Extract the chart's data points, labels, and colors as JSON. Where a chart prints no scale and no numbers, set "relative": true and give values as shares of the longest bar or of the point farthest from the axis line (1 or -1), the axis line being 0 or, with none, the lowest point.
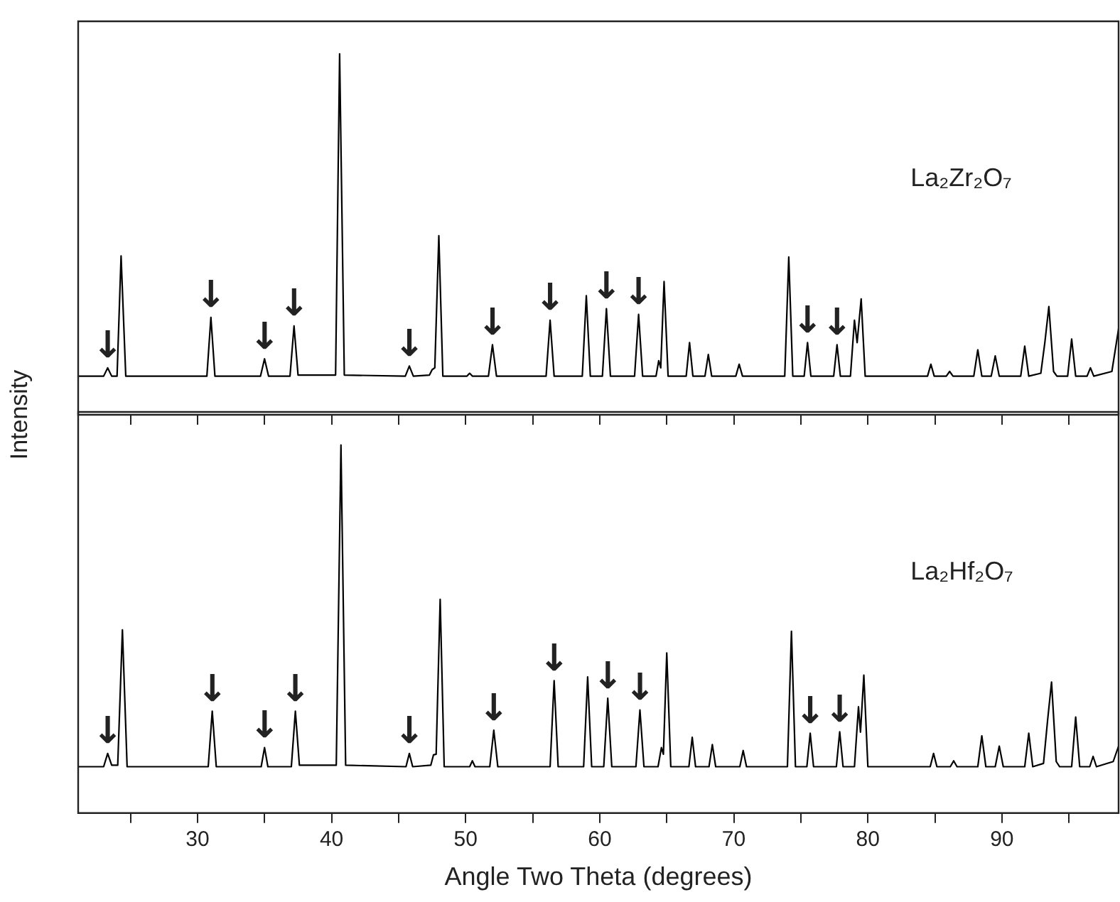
{
  "chart_data": [
    {
      "type": "line",
      "relative": true,
      "ylabel": "Intensity",
      "xlim": [
        21.1,
        98.7
      ],
      "xticks": [
        {
          "value": 25,
          "label": null
        },
        {
          "value": 30,
          "label": null
        },
        {
          "value": 35,
          "label": null
        },
        {
          "value": 40,
          "label": null
        },
        {
          "value": 45,
          "label": null
        },
        {
          "value": 50,
          "label": null
        },
        {
          "value": 55,
          "label": null
        },
        {
          "value": 60,
          "label": null
        },
        {
          "value": 65,
          "label": null
        },
        {
          "value": 70,
          "label": null
        },
        {
          "value": 75,
          "label": null
        },
        {
          "value": 80,
          "label": null
        },
        {
          "value": 85,
          "label": null
        },
        {
          "value": 90,
          "label": null
        },
        {
          "value": 95,
          "label": null
        }
      ],
      "tick_labels": false,
      "legend": false,
      "grid": false,
      "marker": "none",
      "line_style": "solid",
      "annotations": [
        "La₂Zr₂O₇",
        {
          "text": "↓",
          "x": 23.3,
          "y": 0.13
        },
        {
          "text": "↓",
          "x": 31.0,
          "y": 0.27
        },
        {
          "text": "↓",
          "x": 35.0,
          "y": 0.155
        },
        {
          "text": "↓",
          "x": 37.2,
          "y": 0.246
        },
        {
          "text": "↓",
          "x": 45.8,
          "y": 0.135
        },
        {
          "text": "↓",
          "x": 52.0,
          "y": 0.194
        },
        {
          "text": "↓",
          "x": 56.3,
          "y": 0.262
        },
        {
          "text": "↓",
          "x": 60.5,
          "y": 0.294
        },
        {
          "text": "↓",
          "x": 62.9,
          "y": 0.278
        },
        {
          "text": "↓",
          "x": 75.5,
          "y": 0.2
        },
        {
          "text": "↓",
          "x": 77.7,
          "y": 0.194
        }
      ],
      "series": [
        {
          "color": "#000000",
          "x": [
            21.1,
            23.0,
            23.3,
            23.6,
            24.0,
            24.3,
            24.65,
            30.7,
            31.0,
            31.3,
            34.7,
            35.0,
            35.3,
            36.9,
            37.2,
            37.5,
            40.3,
            40.6,
            40.95,
            45.5,
            45.8,
            46.1,
            47.3,
            47.5,
            47.7,
            48.0,
            48.3,
            50.1,
            50.3,
            50.5,
            51.7,
            52.0,
            52.3,
            56.0,
            56.3,
            56.6,
            58.7,
            59.0,
            59.3,
            60.2,
            60.5,
            60.8,
            62.6,
            62.9,
            63.2,
            64.2,
            64.4,
            64.55,
            64.8,
            65.1,
            66.45,
            66.7,
            66.95,
            67.85,
            68.1,
            68.35,
            70.15,
            70.4,
            70.65,
            73.8,
            74.1,
            74.4,
            75.25,
            75.5,
            75.75,
            77.45,
            77.7,
            77.95,
            78.7,
            79.0,
            79.2,
            79.5,
            79.8,
            84.45,
            84.7,
            84.95,
            85.85,
            86.1,
            86.35,
            87.9,
            88.2,
            88.5,
            89.2,
            89.5,
            89.8,
            91.4,
            91.7,
            92.0,
            92.9,
            93.2,
            93.5,
            93.85,
            94.1,
            94.9,
            95.2,
            95.5,
            96.35,
            96.6,
            96.85,
            98.2,
            98.7
          ],
          "values": [
            0.107,
            0.107,
            0.13,
            0.107,
            0.107,
            0.44,
            0.107,
            0.107,
            0.27,
            0.107,
            0.107,
            0.155,
            0.107,
            0.107,
            0.246,
            0.11,
            0.11,
            1,
            0.11,
            0.107,
            0.135,
            0.107,
            0.11,
            0.125,
            0.13,
            0.496,
            0.107,
            0.107,
            0.115,
            0.107,
            0.107,
            0.194,
            0.107,
            0.107,
            0.262,
            0.107,
            0.107,
            0.33,
            0.107,
            0.107,
            0.294,
            0.107,
            0.107,
            0.278,
            0.107,
            0.107,
            0.15,
            0.13,
            0.369,
            0.107,
            0.107,
            0.2,
            0.107,
            0.107,
            0.167,
            0.107,
            0.107,
            0.14,
            0.107,
            0.107,
            0.437,
            0.107,
            0.107,
            0.2,
            0.107,
            0.107,
            0.194,
            0.107,
            0.107,
            0.262,
            0.2,
            0.321,
            0.107,
            0.107,
            0.14,
            0.107,
            0.107,
            0.12,
            0.107,
            0.107,
            0.18,
            0.107,
            0.107,
            0.163,
            0.107,
            0.107,
            0.19,
            0.107,
            0.115,
            0.2,
            0.3,
            0.12,
            0.107,
            0.107,
            0.21,
            0.107,
            0.107,
            0.13,
            0.107,
            0.12,
            0.238
          ]
        }
      ]
    },
    {
      "type": "line",
      "relative": true,
      "xlabel": "Angle Two Theta (degrees)",
      "xlim": [
        21.1,
        98.7
      ],
      "xticks": [
        {
          "value": 25,
          "label": null
        },
        30,
        {
          "value": 35,
          "label": null
        },
        40,
        {
          "value": 45,
          "label": null
        },
        50,
        {
          "value": 55,
          "label": null
        },
        60,
        {
          "value": 65,
          "label": null
        },
        70,
        {
          "value": 75,
          "label": null
        },
        80,
        {
          "value": 85,
          "label": null
        },
        90,
        {
          "value": 95,
          "label": null
        }
      ],
      "tick_labels": "x",
      "legend": false,
      "grid": false,
      "marker": "none",
      "line_style": "solid",
      "annotations": [
        "La₂Hf₂O₇",
        {
          "text": "↓",
          "x": 23.3,
          "y": 0.162
        },
        {
          "text": "↓",
          "x": 31.1,
          "y": 0.277
        },
        {
          "text": "↓",
          "x": 35.0,
          "y": 0.178
        },
        {
          "text": "↓",
          "x": 37.3,
          "y": 0.277
        },
        {
          "text": "↓",
          "x": 45.8,
          "y": 0.162
        },
        {
          "text": "↓",
          "x": 52.1,
          "y": 0.225
        },
        {
          "text": "↓",
          "x": 56.6,
          "y": 0.36
        },
        {
          "text": "↓",
          "x": 60.6,
          "y": 0.312
        },
        {
          "text": "↓",
          "x": 63.0,
          "y": 0.28
        },
        {
          "text": "↓",
          "x": 75.7,
          "y": 0.217
        },
        {
          "text": "↓",
          "x": 77.9,
          "y": 0.221
        }
      ],
      "series": [
        {
          "color": "#000000",
          "x": [
            21.1,
            23.0,
            23.3,
            23.6,
            24.05,
            24.4,
            24.75,
            30.8,
            31.1,
            31.4,
            34.75,
            35.0,
            35.25,
            37.0,
            37.3,
            37.6,
            40.35,
            40.7,
            41.05,
            45.55,
            45.8,
            46.05,
            47.4,
            47.6,
            47.8,
            48.1,
            48.4,
            50.3,
            50.5,
            50.7,
            51.8,
            52.1,
            52.4,
            56.3,
            56.6,
            56.9,
            58.8,
            59.1,
            59.4,
            60.3,
            60.6,
            60.9,
            62.7,
            63.0,
            63.3,
            64.35,
            64.6,
            64.75,
            65.0,
            65.3,
            66.65,
            66.9,
            67.15,
            68.15,
            68.4,
            68.65,
            70.45,
            70.7,
            70.95,
            74.0,
            74.3,
            74.6,
            75.45,
            75.7,
            75.95,
            77.65,
            77.9,
            78.15,
            79.0,
            79.3,
            79.45,
            79.7,
            80.0,
            84.65,
            84.9,
            85.15,
            86.15,
            86.4,
            86.65,
            88.2,
            88.5,
            88.8,
            89.5,
            89.8,
            90.1,
            91.7,
            92.0,
            92.3,
            93.1,
            93.4,
            93.7,
            94.05,
            94.3,
            95.2,
            95.5,
            95.8,
            96.55,
            96.8,
            97.05,
            98.3,
            98.7
          ],
          "values": [
            0.126,
            0.126,
            0.162,
            0.13,
            0.13,
            0.498,
            0.126,
            0.126,
            0.277,
            0.126,
            0.126,
            0.178,
            0.126,
            0.126,
            0.277,
            0.13,
            0.13,
            1,
            0.13,
            0.126,
            0.162,
            0.126,
            0.13,
            0.158,
            0.16,
            0.581,
            0.126,
            0.126,
            0.142,
            0.126,
            0.126,
            0.225,
            0.126,
            0.126,
            0.36,
            0.126,
            0.126,
            0.37,
            0.126,
            0.126,
            0.312,
            0.126,
            0.126,
            0.28,
            0.126,
            0.126,
            0.178,
            0.16,
            0.435,
            0.126,
            0.126,
            0.206,
            0.126,
            0.126,
            0.186,
            0.126,
            0.126,
            0.17,
            0.126,
            0.126,
            0.494,
            0.126,
            0.126,
            0.217,
            0.126,
            0.126,
            0.221,
            0.126,
            0.126,
            0.289,
            0.22,
            0.375,
            0.126,
            0.126,
            0.162,
            0.126,
            0.126,
            0.142,
            0.126,
            0.126,
            0.21,
            0.126,
            0.126,
            0.182,
            0.126,
            0.126,
            0.217,
            0.126,
            0.135,
            0.25,
            0.356,
            0.14,
            0.126,
            0.126,
            0.261,
            0.126,
            0.126,
            0.154,
            0.126,
            0.14,
            0.182
          ]
        }
      ]
    }
  ]
}
